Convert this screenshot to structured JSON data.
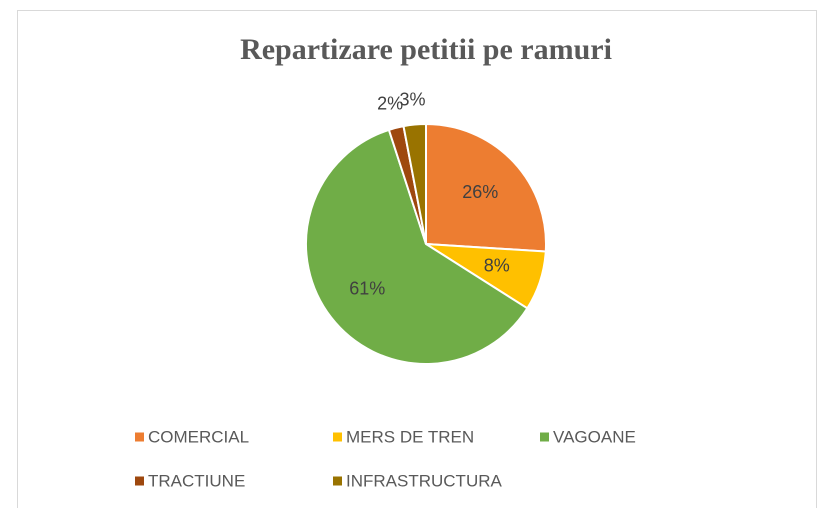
{
  "chart_data": {
    "type": "pie",
    "title": "Repartizare petitii pe ramuri",
    "categories": [
      "COMERCIAL",
      "MERS DE TREN",
      "VAGOANE",
      "TRACTIUNE",
      "INFRASTRUCTURA"
    ],
    "values": [
      26,
      8,
      61,
      2,
      3
    ],
    "value_labels": [
      "26%",
      "8%",
      "61%",
      "2%",
      "3%"
    ],
    "colors": [
      "#ed7d31",
      "#ffc000",
      "#70ad47",
      "#9e480e",
      "#997300"
    ],
    "legend": "bottom"
  }
}
